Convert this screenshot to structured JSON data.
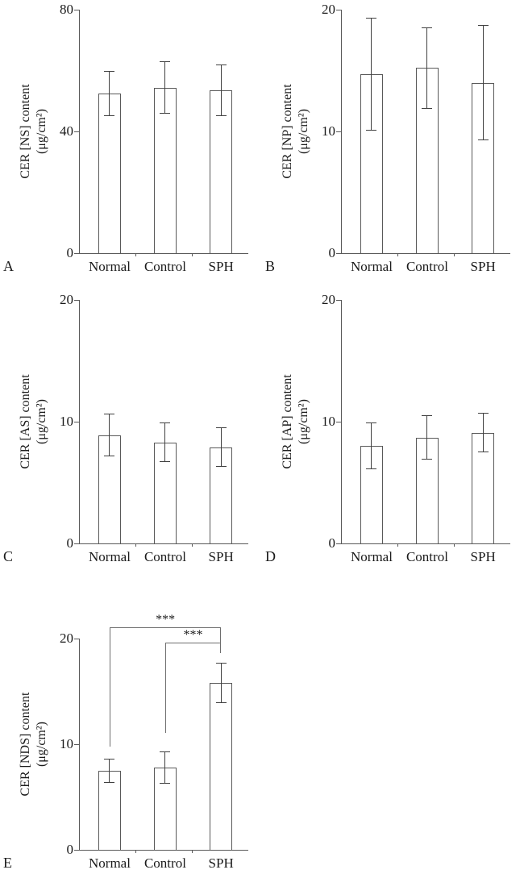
{
  "style": {
    "background": "#ffffff",
    "bar_fill": "#ffffff",
    "bar_border": "#595959",
    "error_bar_color": "#404040",
    "axis_color": "#595959",
    "bracket_color": "#6e6e6e",
    "text_color": "#1a1a1a"
  },
  "chart_data": [
    {
      "type": "bar",
      "panel": "A",
      "title": "",
      "xlabel": "",
      "ylabel": "CER [NS] content (μg/cm²)",
      "ylabel_lines": [
        "CER [NS] content",
        "(μg/cm²)"
      ],
      "categories": [
        "Normal",
        "Control",
        "SPH"
      ],
      "values": [
        52.4,
        54.4,
        53.5
      ],
      "errors": [
        7.3,
        8.4,
        8.3
      ],
      "ylim": [
        0,
        80
      ],
      "yticks": [
        0,
        40,
        80
      ],
      "grid": false,
      "legend": "none"
    },
    {
      "type": "bar",
      "panel": "B",
      "title": "",
      "xlabel": "",
      "ylabel": "CER [NP] content (μg/cm²)",
      "ylabel_lines": [
        "CER [NP] content",
        "(μg/cm²)"
      ],
      "categories": [
        "Normal",
        "Control",
        "SPH"
      ],
      "values": [
        14.7,
        15.2,
        14.0
      ],
      "errors": [
        4.6,
        3.3,
        4.7
      ],
      "ylim": [
        0,
        20
      ],
      "yticks": [
        0,
        10,
        20
      ],
      "grid": false,
      "legend": "none"
    },
    {
      "type": "bar",
      "panel": "C",
      "title": "",
      "xlabel": "",
      "ylabel": "CER [AS] content (μg/cm²)",
      "ylabel_lines": [
        "CER [AS] content",
        "(μg/cm²)"
      ],
      "categories": [
        "Normal",
        "Control",
        "SPH"
      ],
      "values": [
        8.9,
        8.3,
        7.9
      ],
      "errors": [
        1.7,
        1.6,
        1.6
      ],
      "ylim": [
        0,
        20
      ],
      "yticks": [
        0,
        10,
        20
      ],
      "grid": false,
      "legend": "none"
    },
    {
      "type": "bar",
      "panel": "D",
      "title": "",
      "xlabel": "",
      "ylabel": "CER [AP] content (μg/cm²)",
      "ylabel_lines": [
        "CER [AP] content",
        "(μg/cm²)"
      ],
      "categories": [
        "Normal",
        "Control",
        "SPH"
      ],
      "values": [
        8.0,
        8.7,
        9.1
      ],
      "errors": [
        1.9,
        1.8,
        1.6
      ],
      "ylim": [
        0,
        20
      ],
      "yticks": [
        0,
        10,
        20
      ],
      "grid": false,
      "legend": "none"
    },
    {
      "type": "bar",
      "panel": "E",
      "title": "",
      "xlabel": "",
      "ylabel": "CER [NDS] content (μg/cm²)",
      "ylabel_lines": [
        "CER [NDS] content",
        "(μg/cm²)"
      ],
      "categories": [
        "Normal",
        "Control",
        "SPH"
      ],
      "values": [
        7.5,
        7.8,
        15.8
      ],
      "errors": [
        1.1,
        1.5,
        1.9
      ],
      "ylim": [
        0,
        20
      ],
      "yticks": [
        0,
        10,
        20
      ],
      "grid": false,
      "legend": "none",
      "significance": [
        {
          "groups": [
            "Normal",
            "SPH"
          ],
          "label": "***",
          "bar_y": 21.1,
          "left_drop_to": 9.8,
          "right_drop_to": 18.6
        },
        {
          "groups": [
            "Control",
            "SPH"
          ],
          "label": "***",
          "bar_y": 19.6,
          "left_drop_to": 11.1,
          "right_drop_to": 19.0
        }
      ]
    }
  ]
}
